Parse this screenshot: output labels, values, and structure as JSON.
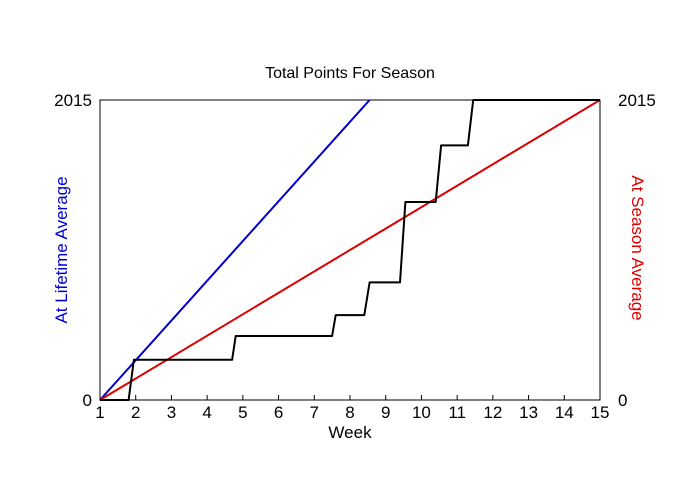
{
  "chart_data": {
    "type": "line",
    "title": "Total Points For Season",
    "xlabel": "Week",
    "ylabel_left": "At Lifetime Average",
    "ylabel_right": "At Season Average",
    "xlim": [
      1,
      15
    ],
    "ylim": [
      0,
      2015
    ],
    "x_ticks": [
      1,
      2,
      3,
      4,
      5,
      6,
      7,
      8,
      9,
      10,
      11,
      12,
      13,
      14,
      15
    ],
    "y_tick_labels_left": [
      "0",
      "2015"
    ],
    "y_tick_labels_right": [
      "0",
      "2015"
    ],
    "grid": false,
    "colors": {
      "lifetime": "#0000cc",
      "season": "#dd0000",
      "actual": "#000000",
      "axes": "#000000"
    },
    "series": [
      {
        "key": "lifetime",
        "x": [
          1,
          8.55
        ],
        "y": [
          0,
          2015
        ]
      },
      {
        "key": "season",
        "x": [
          1,
          15
        ],
        "y": [
          0,
          2015
        ]
      },
      {
        "key": "actual",
        "x": [
          1,
          1.8,
          1.95,
          4.7,
          4.8,
          7.5,
          7.6,
          8.4,
          8.55,
          9.4,
          9.55,
          10.4,
          10.55,
          11.3,
          11.45,
          15
        ],
        "y": [
          0,
          0,
          270,
          270,
          430,
          430,
          570,
          570,
          790,
          790,
          1330,
          1330,
          1710,
          1710,
          2015,
          2015
        ]
      }
    ]
  }
}
